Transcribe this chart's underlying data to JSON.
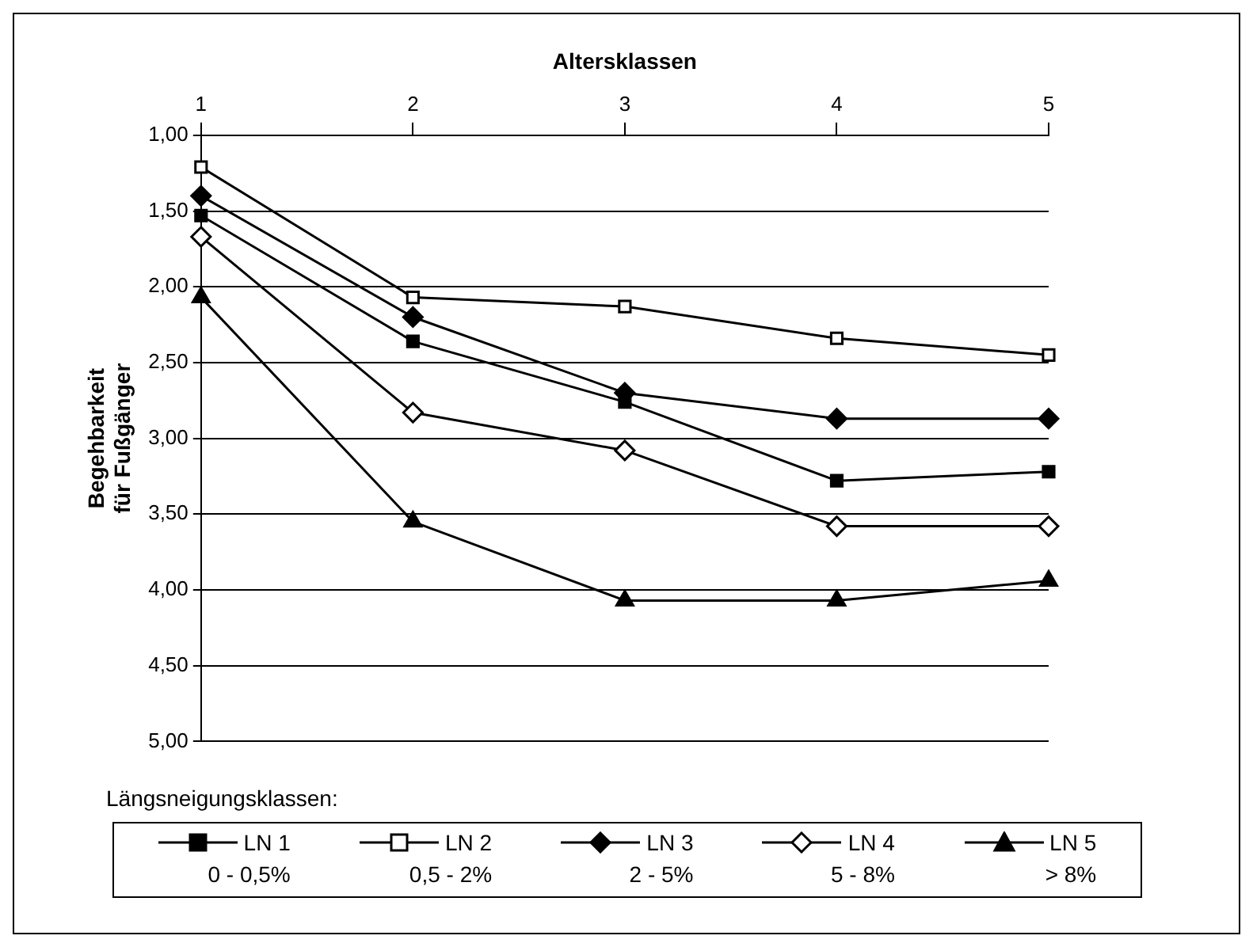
{
  "chart_data": {
    "type": "line",
    "xlabel": "Altersklassen",
    "ylabel": "Begehbarkeit\nfür Fußgänger",
    "legend_title": "Längsneigungsklassen:",
    "categories": [
      "1",
      "2",
      "3",
      "4",
      "5"
    ],
    "ylim": [
      5,
      1
    ],
    "yticks": [
      {
        "value": 1,
        "label": "1,00"
      },
      {
        "value": 1.5,
        "label": "1,50"
      },
      {
        "value": 2,
        "label": "2,00"
      },
      {
        "value": 2.5,
        "label": "2,50"
      },
      {
        "value": 3,
        "label": "3,00"
      },
      {
        "value": 3.5,
        "label": "3,50"
      },
      {
        "value": 4,
        "label": "4,00"
      },
      {
        "value": 4.5,
        "label": "4,50"
      },
      {
        "value": 5,
        "label": "5,00"
      }
    ],
    "grid": "y",
    "legend": "bottom",
    "line_style": "solid",
    "series": [
      {
        "name": "LN 1",
        "color": "#000000",
        "marker": "square",
        "values": [
          1.53,
          2.36,
          2.76,
          3.28,
          3.22
        ]
      },
      {
        "name": "LN 2",
        "color": "#000000",
        "marker": "square-open",
        "values": [
          1.21,
          2.07,
          2.13,
          2.34,
          2.45
        ]
      },
      {
        "name": "LN 3",
        "color": "#000000",
        "marker": "diamond",
        "values": [
          1.4,
          2.2,
          2.7,
          2.87,
          2.87
        ]
      },
      {
        "name": "LN 4",
        "color": "#000000",
        "marker": "diamond-open",
        "values": [
          1.67,
          2.83,
          3.08,
          3.58,
          3.58
        ]
      },
      {
        "name": "LN 5",
        "color": "#000000",
        "marker": "triangle",
        "values": [
          2.07,
          3.55,
          4.07,
          4.07,
          3.94
        ]
      }
    ],
    "annotations": [
      "0 - 0,5%",
      "0,5 - 2%",
      "2 - 5%",
      "5 - 8%",
      "> 8%"
    ]
  }
}
